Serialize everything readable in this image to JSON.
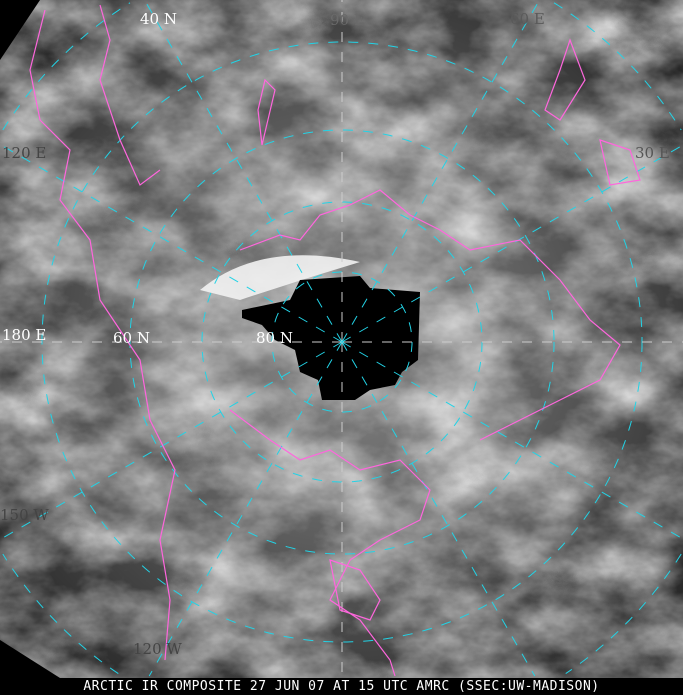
{
  "caption": "ARCTIC IR COMPOSITE 27 JUN 07 AT 15 UTC AMRC (SSEC:UW-MADISON)",
  "labels": {
    "lat_40": "40 N",
    "lat_60": "60 N",
    "lat_80": "80 N",
    "lon_90e": "90 E",
    "lon_60e": "60 E",
    "lon_30e": "30 E",
    "lon_120e": "120 E",
    "lon_180": "180 E",
    "lon_150w": "150 W",
    "lon_120w": "120 W"
  },
  "colors": {
    "graticule": "#22d3e6",
    "coastline": "#ff66dd",
    "no_data": "#000000"
  },
  "projection": "polar-stereographic",
  "imagery": "infrared grayscale"
}
